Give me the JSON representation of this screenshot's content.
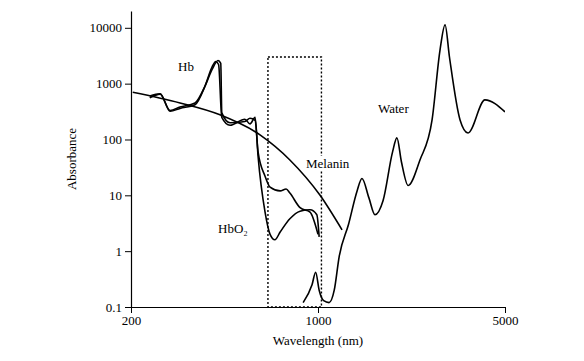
{
  "chart_data": {
    "type": "line",
    "log": true,
    "x_label": "Wavelength (nm)",
    "y_label": "Absorbance",
    "xlim": [
      200,
      5000
    ],
    "ylim": [
      0.1,
      20000
    ],
    "xticks": [
      200,
      1000,
      5000
    ],
    "yticks": [
      0.1,
      1,
      10,
      100,
      1000,
      10000
    ],
    "highlight": {
      "x": [
        650,
        1030
      ],
      "y": [
        0.1,
        3000
      ],
      "line_style": "dotted"
    },
    "series": [
      {
        "name": "Hb",
        "color": "#000000",
        "x": [
          235,
          257,
          280,
          305,
          347,
          378,
          402,
          423,
          433,
          437,
          469,
          533,
          557,
          582,
          597,
          634,
          662,
          722,
          760,
          785,
          857,
          934,
          1000
        ],
        "values": [
          560,
          650,
          330,
          380,
          450,
          900,
          1800,
          2600,
          2300,
          300,
          200,
          210,
          240,
          220,
          60,
          22,
          14,
          12,
          13,
          11,
          6,
          5,
          2
        ]
      },
      {
        "name": "HbO₂",
        "color": "#000000",
        "x": [
          235,
          257,
          280,
          305,
          347,
          378,
          402,
          415,
          425,
          437,
          469,
          533,
          557,
          582,
          597,
          634,
          662,
          690,
          722,
          785,
          857,
          934,
          990,
          1010
        ],
        "values": [
          600,
          660,
          320,
          360,
          420,
          900,
          2000,
          2500,
          2200,
          250,
          180,
          230,
          190,
          250,
          50,
          5,
          2,
          1.6,
          2.2,
          3.8,
          5.2,
          5.5,
          4.5,
          1.8
        ]
      },
      {
        "name": "Melanin",
        "color": "#000000",
        "x": [
          203,
          305,
          430,
          607,
          785,
          1018,
          1230
        ],
        "values": [
          700,
          450,
          276,
          121,
          43,
          10,
          2.4
        ]
      },
      {
        "name": "Water",
        "color": "#000000",
        "x": [
          880,
          950,
          980,
          1010,
          1050,
          1100,
          1150,
          1200,
          1300,
          1400,
          1460,
          1550,
          1633,
          1750,
          1900,
          1972,
          2050,
          2172,
          2405,
          2669,
          2858,
          2985,
          3100,
          3396,
          3637,
          4207,
          5000
        ],
        "values": [
          0.12,
          0.25,
          0.42,
          0.2,
          0.13,
          0.12,
          0.2,
          0.8,
          3,
          12,
          20,
          9,
          4.5,
          8,
          60,
          107,
          40,
          15,
          43,
          224,
          4000,
          11300,
          3000,
          224,
          131,
          513,
          312
        ]
      }
    ]
  }
}
